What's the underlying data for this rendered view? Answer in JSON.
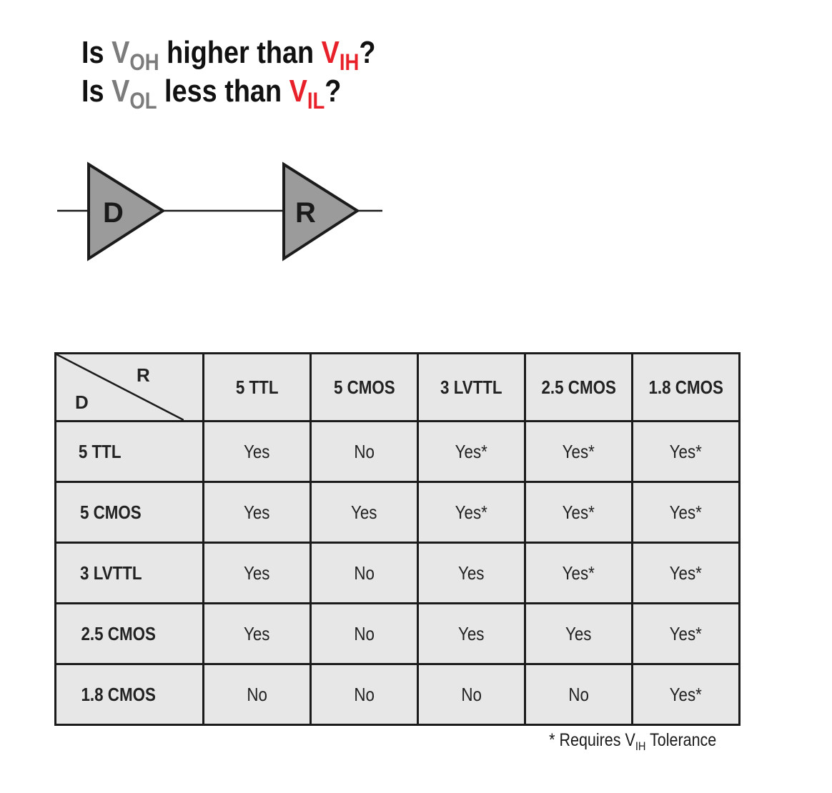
{
  "title": {
    "line1": {
      "prefix": "Is ",
      "v1": "V",
      "v1_sub": "OH",
      "mid": " higher than ",
      "v2": "V",
      "v2_sub": "IH",
      "suffix": "?"
    },
    "line2": {
      "prefix": "Is ",
      "v1": "V",
      "v1_sub": "OL",
      "mid": " less than ",
      "v2": "V",
      "v2_sub": "IL",
      "suffix": "?"
    }
  },
  "diagram": {
    "driver_label": "D",
    "receiver_label": "R",
    "colors": {
      "triangle_fill": "#9b9b9c",
      "outline": "#1b1b1b"
    }
  },
  "table": {
    "corner": {
      "receiver": "R",
      "driver": "D"
    },
    "columns": [
      "5 TTL",
      "5 CMOS",
      "3 LVTTL",
      "2.5 CMOS",
      "1.8 CMOS"
    ],
    "rows": [
      {
        "label": "5 TTL",
        "cells": [
          "Yes",
          "No",
          "Yes*",
          "Yes*",
          "Yes*"
        ]
      },
      {
        "label": "5 CMOS",
        "cells": [
          "Yes",
          "Yes",
          "Yes*",
          "Yes*",
          "Yes*"
        ]
      },
      {
        "label": "3 LVTTL",
        "cells": [
          "Yes",
          "No",
          "Yes",
          "Yes*",
          "Yes*"
        ]
      },
      {
        "label": "2.5 CMOS",
        "cells": [
          "Yes",
          "No",
          "Yes",
          "Yes",
          "Yes*"
        ]
      },
      {
        "label": "1.8 CMOS",
        "cells": [
          "No",
          "No",
          "No",
          "No",
          "Yes*"
        ]
      }
    ],
    "colors": {
      "background": "#e7e7e8",
      "border": "#1b1b1b"
    }
  },
  "footnote": {
    "prefix": "* Requires V",
    "sub": "IH",
    "suffix": " Tolerance"
  },
  "colors": {
    "grey_text": "#7b7b7b",
    "red_text": "#e8202a"
  }
}
